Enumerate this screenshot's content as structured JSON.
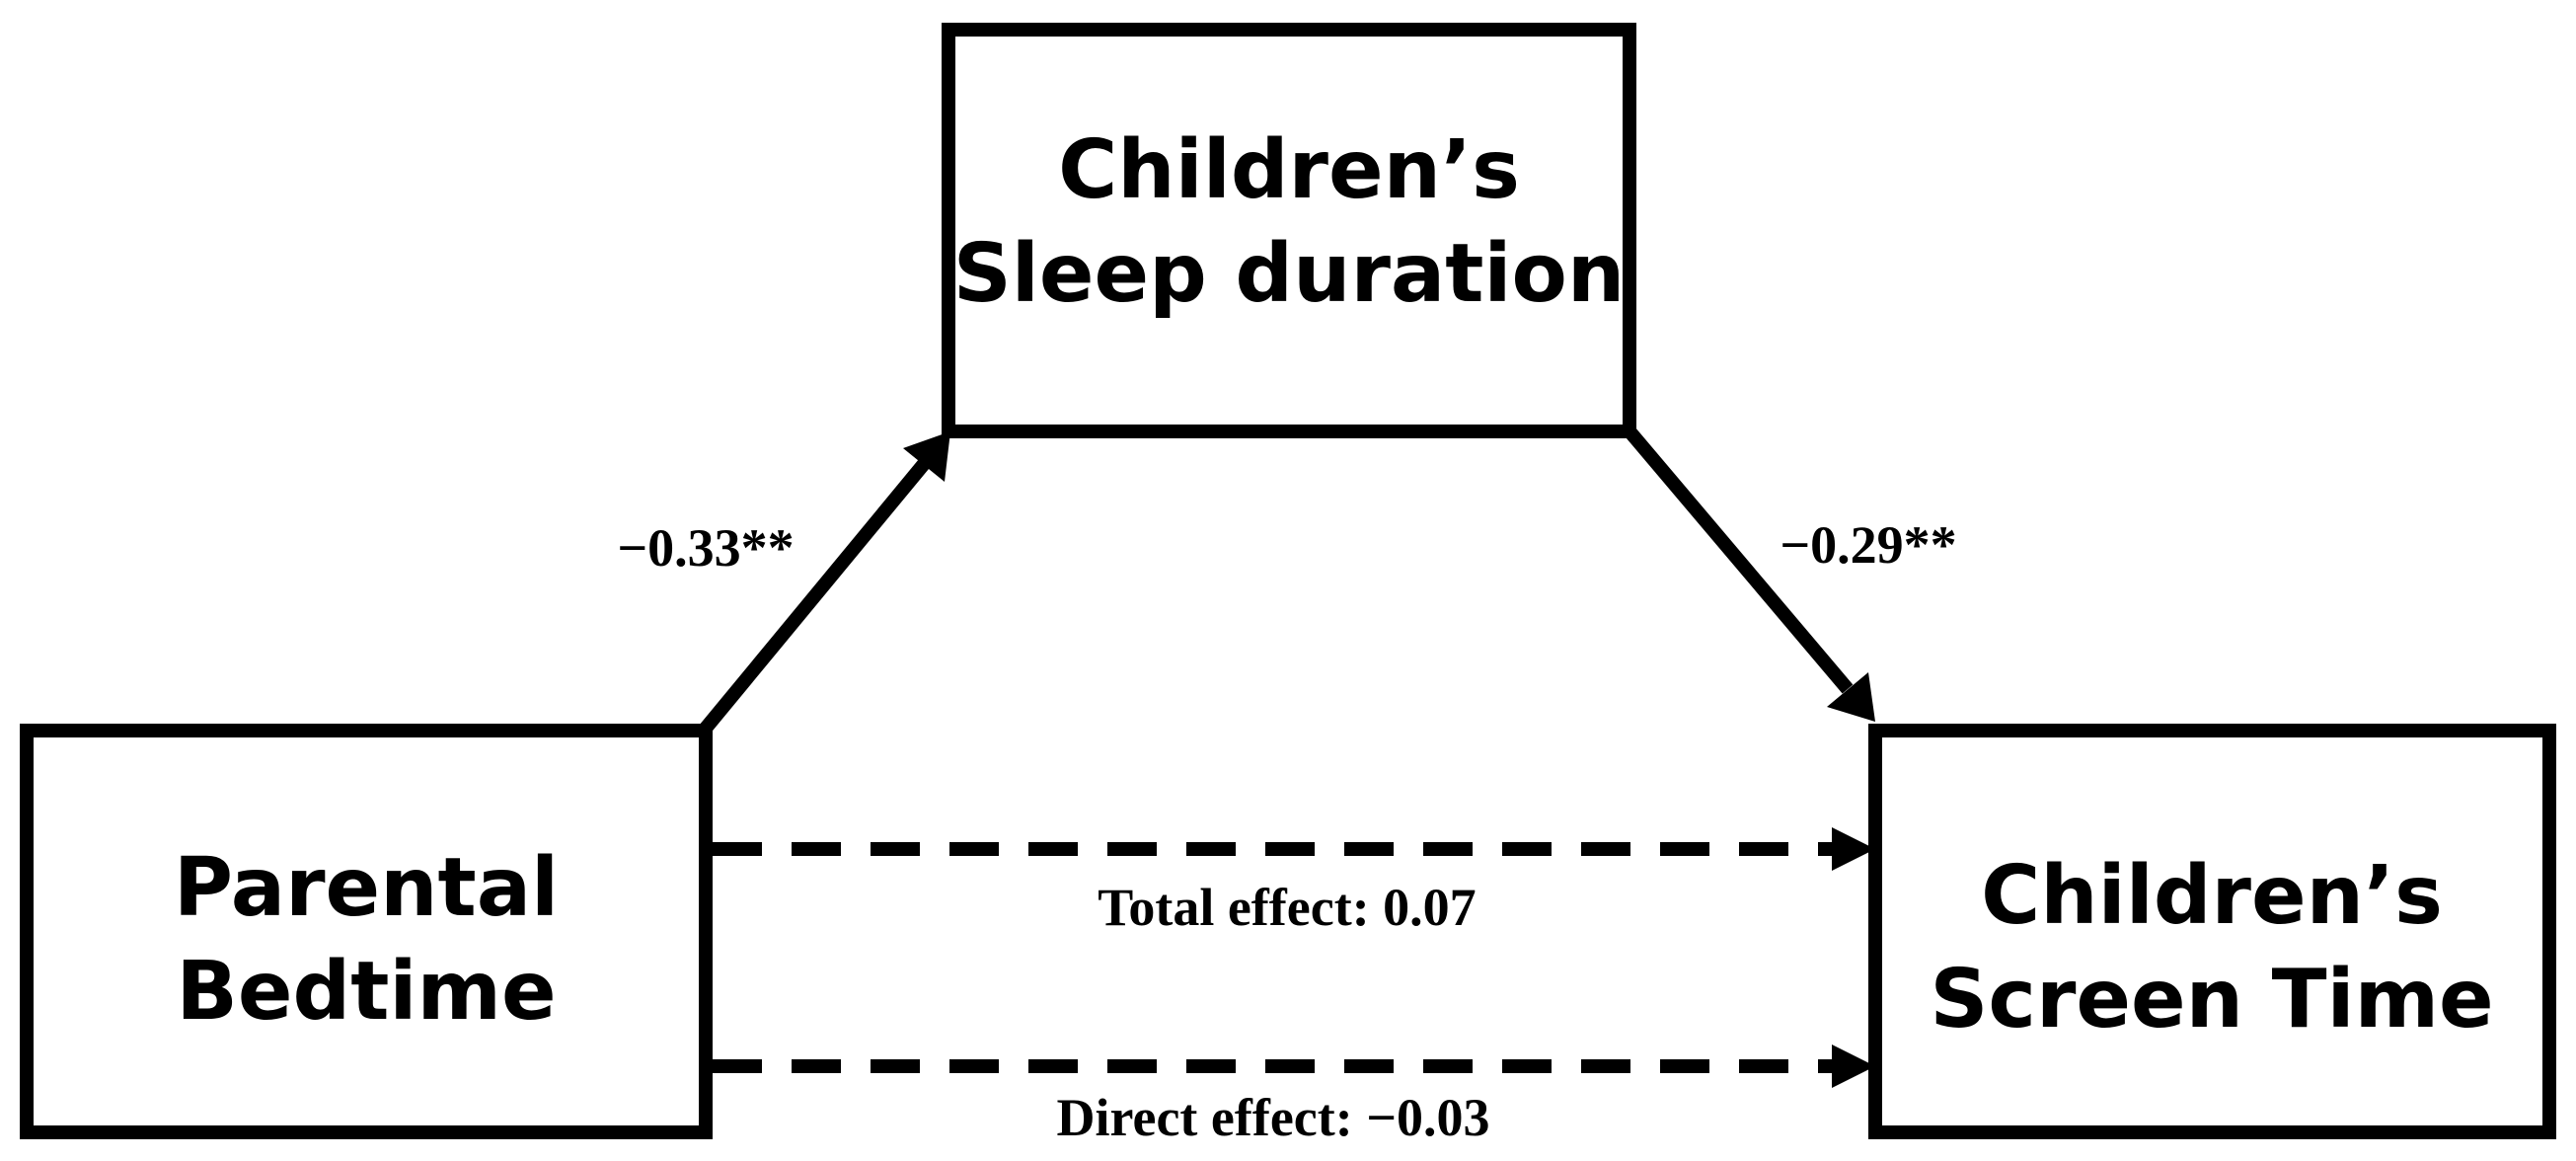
{
  "nodes": {
    "mediator": {
      "line1": "Children’s",
      "line2": "Sleep duration"
    },
    "predictor": {
      "line1": "Parental",
      "line2": "Bedtime"
    },
    "outcome": {
      "line1": "Children’s",
      "line2": "Screen Time"
    }
  },
  "paths": {
    "a_coefficient": "−0.33**",
    "b_coefficient": "−0.29**",
    "total_effect": "Total effect: 0.07",
    "direct_effect": "Direct effect: −0.03"
  },
  "colors": {
    "line": "#000000",
    "background": "#ffffff"
  }
}
